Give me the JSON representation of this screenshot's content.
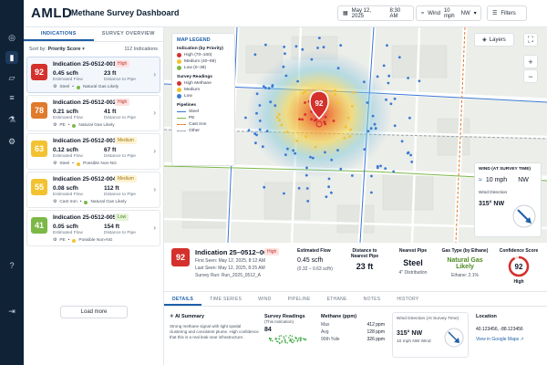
{
  "colors": {
    "high": "#d4302c",
    "high_alt": "#e07a2c",
    "medium": "#f2c230",
    "low": "#7bb846",
    "accent": "#1d5fa8",
    "nav": "#0f2236"
  },
  "header": {
    "brand": "AMLD",
    "title": "Methane Survey Dashboard",
    "date": "May 12, 2025",
    "time": "8:30 AM",
    "wind_label": "Wind",
    "wind_value": "10 mph",
    "wind_dir": "NW",
    "filters": "Filters"
  },
  "rail": {
    "icons": [
      "target-icon",
      "chart-icon",
      "map-icon",
      "layers-icon",
      "flask-icon",
      "gear-icon",
      "help-icon",
      "logout-icon"
    ]
  },
  "left": {
    "tabs": [
      "INDICATIONS",
      "SURVEY OVERVIEW"
    ],
    "sort_label": "Sort by:",
    "sort_value": "Priority Score",
    "count": "112 Indications",
    "flow_label": "Estimated Flow",
    "dist_label": "Distance to Pipe",
    "load_more": "Load more",
    "items": [
      {
        "score": "92",
        "id": "Indication 25-0512-001",
        "level": "High",
        "flow": "0.45 scfh",
        "dist": "23 ft",
        "pipe": "Steel",
        "gas": "Natural Gas Likely",
        "color": "#d4302c",
        "badge_bg": "#fde2e1",
        "badge_fg": "#c0392b",
        "dot": "#7bb846"
      },
      {
        "score": "78",
        "id": "Indication 25-0512-002",
        "level": "High",
        "flow": "0.21 scfh",
        "dist": "41 ft",
        "pipe": "PE",
        "gas": "Natural Gas Likely",
        "color": "#e07a2c",
        "badge_bg": "#fde2e1",
        "badge_fg": "#c0392b",
        "dot": "#7bb846"
      },
      {
        "score": "63",
        "id": "Indication 25-0512-003",
        "level": "Medium",
        "flow": "0.12 scfh",
        "dist": "67 ft",
        "pipe": "Steel",
        "gas": "Possible Non-NG",
        "color": "#f2c230",
        "badge_bg": "#fdf2d3",
        "badge_fg": "#a07810",
        "dot": "#f2c230"
      },
      {
        "score": "55",
        "id": "Indication 25-0512-004",
        "level": "Medium",
        "flow": "0.08 scfh",
        "dist": "112 ft",
        "pipe": "Cast Iron",
        "gas": "Natural Gas Likely",
        "color": "#f2c230",
        "badge_bg": "#fdf2d3",
        "badge_fg": "#a07810",
        "dot": "#7bb846"
      },
      {
        "score": "41",
        "id": "Indication 25-0512-005",
        "level": "Low",
        "flow": "0.05 scfh",
        "dist": "154 ft",
        "pipe": "PE",
        "gas": "Possible Non-NG",
        "color": "#7bb846",
        "badge_bg": "#e5f3d8",
        "badge_fg": "#4d8a22",
        "dot": "#f2c230"
      }
    ]
  },
  "map": {
    "legend_title": "MAP LEGEND",
    "indication_title": "Indication (by Priority)",
    "indications": [
      {
        "label": "High (70–100)",
        "color": "#d4302c"
      },
      {
        "label": "Medium (40–69)",
        "color": "#f2c230"
      },
      {
        "label": "Low (0–39)",
        "color": "#7bb846"
      }
    ],
    "readings_title": "Survey Readings",
    "readings": [
      {
        "label": "High Methane",
        "color": "#d4302c"
      },
      {
        "label": "Medium",
        "color": "#f2c230"
      },
      {
        "label": "Low",
        "color": "#3a78d4"
      }
    ],
    "pipelines_title": "Pipelines",
    "pipelines": [
      {
        "label": "Steel",
        "color": "#3a78d4",
        "style": "solid"
      },
      {
        "label": "PE",
        "color": "#7bb846",
        "style": "solid"
      },
      {
        "label": "Cast Iron",
        "color": "#e07a2c",
        "style": "dashed"
      },
      {
        "label": "Other",
        "color": "#9aa3ad",
        "style": "dashed"
      }
    ],
    "layers": "Layers",
    "zoom_in": "+",
    "zoom_out": "−",
    "marker_score": "92",
    "wind_title": "WIND (AT SURVEY TIME)",
    "wind_speed": "10 mph",
    "wind_dir": "NW",
    "wind_dir_label": "Wind Direction",
    "wind_deg": "315° NW"
  },
  "details": {
    "score": "92",
    "id": "Indication 25–0512–001",
    "level": "High",
    "first_seen": "First Seen: May 12, 2025, 8:12 AM",
    "last_seen": "Last Seen: May 12, 2025, 8:25 AM",
    "survey_run": "Survey Run: Run_2025_0512_A",
    "flow_label": "Estimated Flow",
    "flow": "0.45 scfh",
    "flow_range": "(0.32 – 0.63 scfh)",
    "dist_label": "Distance to Nearest Pipe",
    "dist": "23 ft",
    "pipe_label": "Nearest Pipe",
    "pipe": "Steel",
    "pipe_sub": "4\" Distribution",
    "gas_label": "Gas Type (by Ethane)",
    "gas": "Natural Gas Likely",
    "ethane": "Ethane: 2.1%",
    "conf_label": "Confidence Score",
    "conf_value": "92",
    "conf_fraction": 0.92,
    "conf_level": "High"
  },
  "detail_tabs": [
    "DETAILS",
    "TIME SERIES",
    "WIND",
    "PIPELINE",
    "ETHANE",
    "NOTES",
    "HISTORY"
  ],
  "bottom": {
    "ai_title": "AI Summary",
    "ai_text": "Strong methane signal with tight spatial clustering and consistent plume. High confidence that this is a real leak near infrastructure.",
    "readings_title": "Survey Readings",
    "readings_sub": "(This Indication)",
    "readings_count": "84",
    "methane_title": "Methane (ppm)",
    "methane": [
      {
        "k": "Max",
        "v": "412 ppm"
      },
      {
        "k": "Avg",
        "v": "128 ppm"
      },
      {
        "k": "90th %ile",
        "v": "326 ppm"
      }
    ],
    "wd_title": "Wind Direction (At Survey Time)",
    "wd_value": "315° NW",
    "wd_sub": "10 mph NW Wind",
    "loc_title": "Location",
    "loc_value": "40.123456, -88.123456",
    "loc_link": "View in Google Maps"
  }
}
